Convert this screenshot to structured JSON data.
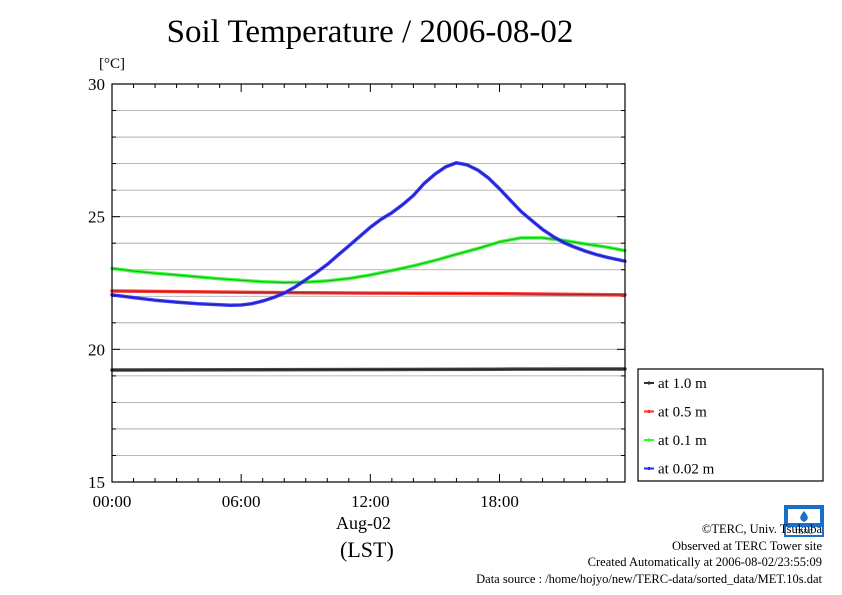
{
  "chart_data": {
    "type": "line",
    "title": "Soil Temperature / 2006-08-02",
    "ylabel": "[°C]",
    "xlabel": "(LST)",
    "date_label": "Aug-02",
    "xlim": [
      0,
      23.83
    ],
    "ylim": [
      15,
      30
    ],
    "x_ticks": [
      0,
      6,
      12,
      18
    ],
    "x_tick_labels": [
      "00:00",
      "06:00",
      "12:00",
      "18:00"
    ],
    "y_ticks": [
      15,
      20,
      25,
      30
    ],
    "y_tick_labels": [
      "15",
      "20",
      "25",
      "30"
    ],
    "grid": "horizontal",
    "legend_position": "right-bottom outside",
    "series": [
      {
        "name": "at 1.0 m",
        "color": "#333333",
        "x": [
          0,
          6,
          12,
          18,
          23.83
        ],
        "y": [
          19.22,
          19.23,
          19.24,
          19.25,
          19.26
        ]
      },
      {
        "name": "at 0.5 m",
        "color": "#ff2a2a",
        "x": [
          0,
          6,
          12,
          18,
          23.83
        ],
        "y": [
          22.2,
          22.15,
          22.12,
          22.1,
          22.05
        ]
      },
      {
        "name": "at 0.1 m",
        "color": "#2aff2a",
        "x": [
          0,
          1,
          2,
          3,
          4,
          5,
          6,
          7,
          8,
          9,
          10,
          11,
          12,
          13,
          14,
          15,
          16,
          17,
          18,
          19,
          20,
          21,
          22,
          23,
          23.83
        ],
        "y": [
          23.05,
          22.95,
          22.87,
          22.8,
          22.73,
          22.66,
          22.6,
          22.55,
          22.52,
          22.53,
          22.58,
          22.67,
          22.8,
          22.97,
          23.15,
          23.35,
          23.58,
          23.8,
          24.05,
          24.2,
          24.2,
          24.1,
          23.97,
          23.85,
          23.72
        ]
      },
      {
        "name": "at 0.02 m",
        "color": "#2a2aff",
        "x": [
          0,
          1,
          2,
          3,
          4,
          5,
          5.5,
          6,
          6.5,
          7,
          7.5,
          8,
          8.5,
          9,
          9.5,
          10,
          10.5,
          11,
          11.5,
          12,
          12.5,
          13,
          13.5,
          14,
          14.5,
          15,
          15.5,
          16,
          16.5,
          17,
          17.5,
          18,
          18.5,
          19,
          19.5,
          20,
          20.5,
          21,
          21.5,
          22,
          22.5,
          23,
          23.83
        ],
        "y": [
          22.05,
          21.95,
          21.85,
          21.78,
          21.72,
          21.68,
          21.66,
          21.67,
          21.72,
          21.82,
          21.95,
          22.12,
          22.35,
          22.62,
          22.9,
          23.2,
          23.55,
          23.9,
          24.25,
          24.6,
          24.9,
          25.15,
          25.45,
          25.8,
          26.25,
          26.6,
          26.88,
          27.03,
          26.95,
          26.75,
          26.45,
          26.05,
          25.62,
          25.2,
          24.85,
          24.52,
          24.25,
          24.02,
          23.85,
          23.7,
          23.57,
          23.47,
          23.32
        ]
      }
    ]
  },
  "footer": {
    "copyright": "©TERC, Univ. Tsukuba",
    "observed": "Observed at TERC Tower site",
    "created": "Created Automatically at 2006-08-02/23:55:09",
    "source": "Data source : /home/hojyo/new/TERC-data/sorted_data/MET.10s.dat"
  },
  "logo_text": "TERC"
}
